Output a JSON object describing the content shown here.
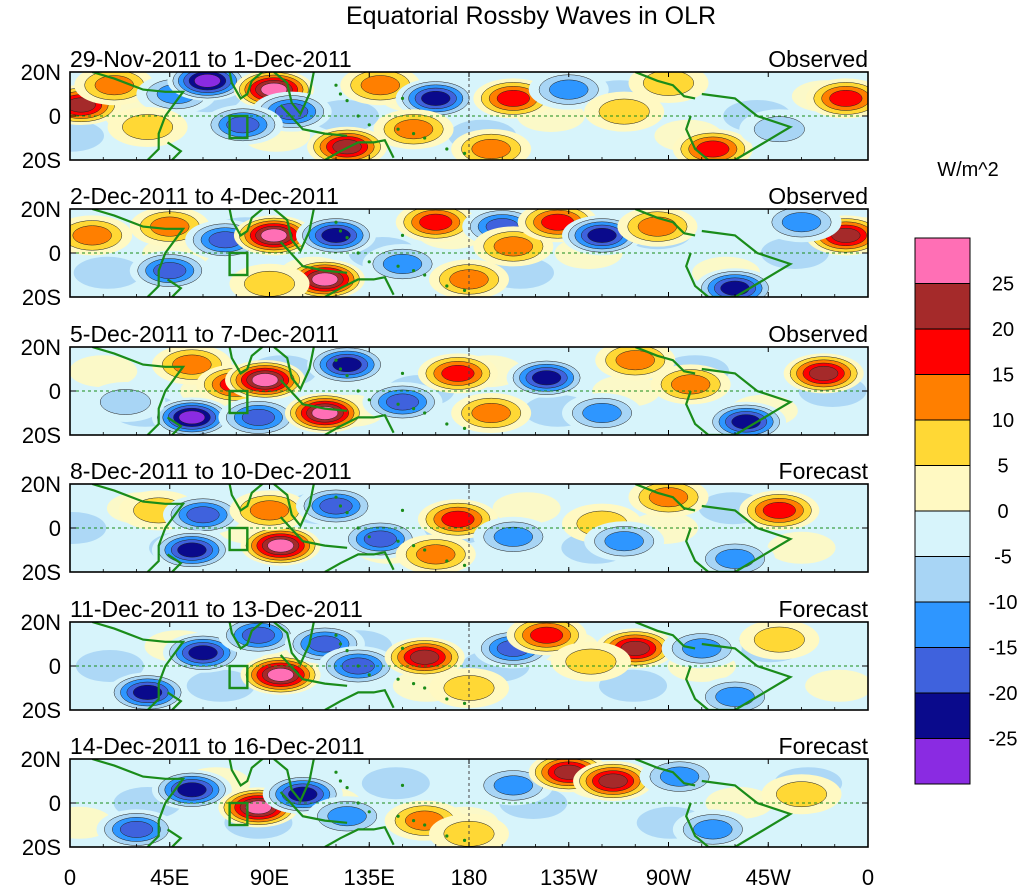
{
  "chart_data": {
    "type": "heatmap",
    "title": "Equatorial Rossby Waves in OLR",
    "units": "W/m^2",
    "colorbar": {
      "labels": [
        "25",
        "20",
        "15",
        "10",
        "5",
        "0",
        "-5",
        "-10",
        "-15",
        "-20",
        "-25"
      ],
      "colors": [
        "#ff6fb5",
        "#a52a2a",
        "#ff0000",
        "#ff7f00",
        "#ffd835",
        "#fff9c2",
        "#d7f4fb",
        "#a8d5f5",
        "#2e96ff",
        "#3f62dd",
        "#0a0a8c",
        "#8a2be2"
      ]
    },
    "x_ticks": [
      "0",
      "45E",
      "90E",
      "135E",
      "180",
      "135W",
      "90W",
      "45W",
      "0"
    ],
    "y_ticks": [
      "20N",
      "0",
      "20S"
    ],
    "xlim_deg_east": [
      0,
      360
    ],
    "ylim_deg": [
      -20,
      20
    ],
    "panels": [
      {
        "dates": "29-Nov-2011 to 1-Dec-2011",
        "kind": "Observed",
        "anomalies": [
          {
            "lon": 5,
            "lat": 5,
            "v": 20
          },
          {
            "lon": 20,
            "lat": 14,
            "v": 10
          },
          {
            "lon": 48,
            "lat": 10,
            "v": -10
          },
          {
            "lon": 62,
            "lat": 16,
            "v": -25
          },
          {
            "lon": 92,
            "lat": 12,
            "v": 25
          },
          {
            "lon": 100,
            "lat": 2,
            "v": -15
          },
          {
            "lon": 78,
            "lat": -4,
            "v": -15
          },
          {
            "lon": 35,
            "lat": -5,
            "v": 5
          },
          {
            "lon": 140,
            "lat": 14,
            "v": 10
          },
          {
            "lon": 165,
            "lat": 8,
            "v": -20
          },
          {
            "lon": 125,
            "lat": -14,
            "v": 20
          },
          {
            "lon": 155,
            "lat": -6,
            "v": 10
          },
          {
            "lon": 200,
            "lat": 8,
            "v": 15
          },
          {
            "lon": 225,
            "lat": 12,
            "v": -10
          },
          {
            "lon": 250,
            "lat": 2,
            "v": 5
          },
          {
            "lon": 290,
            "lat": -15,
            "v": 15
          },
          {
            "lon": 350,
            "lat": 8,
            "v": 15
          },
          {
            "lon": 320,
            "lat": -6,
            "v": -5
          },
          {
            "lon": 190,
            "lat": -15,
            "v": 10
          },
          {
            "lon": 270,
            "lat": 15,
            "v": 5
          }
        ]
      },
      {
        "dates": "2-Dec-2011 to 4-Dec-2011",
        "kind": "Observed",
        "anomalies": [
          {
            "lon": 10,
            "lat": 8,
            "v": 10
          },
          {
            "lon": 45,
            "lat": 12,
            "v": 10
          },
          {
            "lon": 70,
            "lat": 6,
            "v": -15
          },
          {
            "lon": 92,
            "lat": 8,
            "v": 25
          },
          {
            "lon": 45,
            "lat": -8,
            "v": -15
          },
          {
            "lon": 120,
            "lat": 8,
            "v": -20
          },
          {
            "lon": 115,
            "lat": -12,
            "v": 25
          },
          {
            "lon": 165,
            "lat": 14,
            "v": 15
          },
          {
            "lon": 150,
            "lat": -5,
            "v": -10
          },
          {
            "lon": 195,
            "lat": 12,
            "v": -15
          },
          {
            "lon": 200,
            "lat": 3,
            "v": 10
          },
          {
            "lon": 220,
            "lat": 14,
            "v": 15
          },
          {
            "lon": 240,
            "lat": 8,
            "v": -20
          },
          {
            "lon": 265,
            "lat": 12,
            "v": 10
          },
          {
            "lon": 300,
            "lat": -16,
            "v": -20
          },
          {
            "lon": 350,
            "lat": 8,
            "v": 20
          },
          {
            "lon": 330,
            "lat": 14,
            "v": -10
          },
          {
            "lon": 180,
            "lat": -12,
            "v": 10
          },
          {
            "lon": 90,
            "lat": -14,
            "v": 5
          }
        ]
      },
      {
        "dates": "5-Dec-2011 to 7-Dec-2011",
        "kind": "Observed",
        "anomalies": [
          {
            "lon": 55,
            "lat": 12,
            "v": 10
          },
          {
            "lon": 75,
            "lat": 3,
            "v": 15
          },
          {
            "lon": 88,
            "lat": 5,
            "v": 25
          },
          {
            "lon": 55,
            "lat": -12,
            "v": -25
          },
          {
            "lon": 85,
            "lat": -12,
            "v": -15
          },
          {
            "lon": 115,
            "lat": -10,
            "v": 25
          },
          {
            "lon": 125,
            "lat": 12,
            "v": -20
          },
          {
            "lon": 150,
            "lat": -5,
            "v": -15
          },
          {
            "lon": 175,
            "lat": 8,
            "v": 15
          },
          {
            "lon": 215,
            "lat": 6,
            "v": -20
          },
          {
            "lon": 190,
            "lat": -10,
            "v": 10
          },
          {
            "lon": 240,
            "lat": -10,
            "v": -10
          },
          {
            "lon": 280,
            "lat": 3,
            "v": 10
          },
          {
            "lon": 305,
            "lat": -14,
            "v": -20
          },
          {
            "lon": 340,
            "lat": 8,
            "v": 20
          },
          {
            "lon": 25,
            "lat": -5,
            "v": -5
          },
          {
            "lon": 255,
            "lat": 14,
            "v": 10
          }
        ]
      },
      {
        "dates": "8-Dec-2011 to 10-Dec-2011",
        "kind": "Forecast",
        "anomalies": [
          {
            "lon": 40,
            "lat": 8,
            "v": 5
          },
          {
            "lon": 60,
            "lat": 6,
            "v": -15
          },
          {
            "lon": 55,
            "lat": -10,
            "v": -20
          },
          {
            "lon": 95,
            "lat": -8,
            "v": 25
          },
          {
            "lon": 90,
            "lat": 8,
            "v": 10
          },
          {
            "lon": 120,
            "lat": 10,
            "v": -15
          },
          {
            "lon": 140,
            "lat": -5,
            "v": -15
          },
          {
            "lon": 175,
            "lat": 4,
            "v": 15
          },
          {
            "lon": 200,
            "lat": -4,
            "v": -10
          },
          {
            "lon": 240,
            "lat": 2,
            "v": 5
          },
          {
            "lon": 270,
            "lat": 14,
            "v": 10
          },
          {
            "lon": 250,
            "lat": -6,
            "v": -10
          },
          {
            "lon": 320,
            "lat": 8,
            "v": 15
          },
          {
            "lon": 300,
            "lat": -14,
            "v": -10
          },
          {
            "lon": 165,
            "lat": -12,
            "v": 10
          }
        ]
      },
      {
        "dates": "11-Dec-2011 to 13-Dec-2011",
        "kind": "Forecast",
        "anomalies": [
          {
            "lon": 35,
            "lat": -12,
            "v": -20
          },
          {
            "lon": 60,
            "lat": 6,
            "v": -20
          },
          {
            "lon": 95,
            "lat": -4,
            "v": 25
          },
          {
            "lon": 85,
            "lat": 14,
            "v": -15
          },
          {
            "lon": 115,
            "lat": 10,
            "v": -15
          },
          {
            "lon": 130,
            "lat": 0,
            "v": -15
          },
          {
            "lon": 160,
            "lat": 4,
            "v": 20
          },
          {
            "lon": 200,
            "lat": 8,
            "v": -15
          },
          {
            "lon": 215,
            "lat": 14,
            "v": 15
          },
          {
            "lon": 255,
            "lat": 8,
            "v": 20
          },
          {
            "lon": 235,
            "lat": 2,
            "v": 5
          },
          {
            "lon": 285,
            "lat": 8,
            "v": -10
          },
          {
            "lon": 320,
            "lat": 12,
            "v": 5
          },
          {
            "lon": 300,
            "lat": -14,
            "v": -10
          },
          {
            "lon": 180,
            "lat": -10,
            "v": 5
          }
        ]
      },
      {
        "dates": "14-Dec-2011 to 16-Dec-2011",
        "kind": "Forecast",
        "anomalies": [
          {
            "lon": 30,
            "lat": -12,
            "v": -15
          },
          {
            "lon": 55,
            "lat": 6,
            "v": -20
          },
          {
            "lon": 85,
            "lat": -2,
            "v": 25
          },
          {
            "lon": 105,
            "lat": 4,
            "v": -20
          },
          {
            "lon": 125,
            "lat": -6,
            "v": -10
          },
          {
            "lon": 160,
            "lat": -8,
            "v": 10
          },
          {
            "lon": 200,
            "lat": 8,
            "v": -10
          },
          {
            "lon": 225,
            "lat": 14,
            "v": 20
          },
          {
            "lon": 245,
            "lat": 10,
            "v": 20
          },
          {
            "lon": 275,
            "lat": 12,
            "v": -10
          },
          {
            "lon": 290,
            "lat": -12,
            "v": -10
          },
          {
            "lon": 180,
            "lat": -14,
            "v": 5
          },
          {
            "lon": 330,
            "lat": 4,
            "v": 5
          }
        ]
      }
    ]
  }
}
